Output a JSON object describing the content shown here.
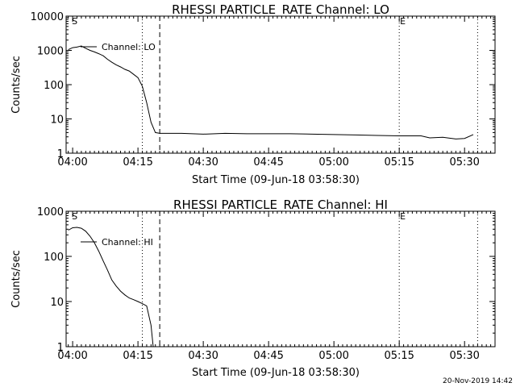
{
  "chart_data": [
    {
      "type": "line",
      "title": "RHESSI PARTICLE_RATE Channel: LO",
      "xlabel": "Start Time (09-Jun-18 03:58:30)",
      "ylabel": "Counts/sec",
      "yscale": "log",
      "xlim": [
        "03:58:30",
        "05:37:00"
      ],
      "ylim": [
        1,
        10000
      ],
      "x_ticks": [
        "04:00",
        "04:15",
        "04:30",
        "04:45",
        "05:00",
        "05:15",
        "05:30"
      ],
      "y_ticks": [
        "1",
        "10",
        "100",
        "1000",
        "10000"
      ],
      "legend": "top-left",
      "series": [
        {
          "name": "Channel: LO",
          "x": [
            "03:59",
            "04:00",
            "04:01",
            "04:02",
            "04:03",
            "04:04",
            "04:05",
            "04:06",
            "04:07",
            "04:08",
            "04:09",
            "04:10",
            "04:11",
            "04:12",
            "04:13",
            "04:14",
            "04:15",
            "04:16",
            "04:17",
            "04:18",
            "04:19",
            "04:20",
            "04:25",
            "04:30",
            "04:35",
            "04:40",
            "04:45",
            "04:50",
            "04:55",
            "05:00",
            "05:05",
            "05:10",
            "05:15",
            "05:20",
            "05:22",
            "05:25",
            "05:28",
            "05:30",
            "05:32"
          ],
          "y": [
            1050,
            1200,
            1250,
            1350,
            1150,
            1000,
            900,
            800,
            700,
            550,
            450,
            380,
            330,
            280,
            250,
            200,
            160,
            90,
            30,
            8,
            4,
            3.8,
            3.8,
            3.6,
            3.8,
            3.7,
            3.7,
            3.7,
            3.6,
            3.5,
            3.4,
            3.3,
            3.2,
            3.2,
            2.8,
            2.9,
            2.6,
            2.7,
            3.5
          ]
        }
      ],
      "vlines": [
        {
          "x": "04:16",
          "style": "dotted"
        },
        {
          "x": "04:20",
          "style": "dashed"
        },
        {
          "x": "05:15",
          "style": "dotted",
          "label": "E"
        },
        {
          "x": "05:33",
          "style": "dotted"
        }
      ],
      "markers": [
        {
          "x": "04:00",
          "label": "S"
        }
      ]
    },
    {
      "type": "line",
      "title": "RHESSI PARTICLE_RATE Channel: HI",
      "xlabel": "Start Time (09-Jun-18 03:58:30)",
      "ylabel": "Counts/sec",
      "yscale": "log",
      "xlim": [
        "03:58:30",
        "05:37:00"
      ],
      "ylim": [
        1,
        1000
      ],
      "x_ticks": [
        "04:00",
        "04:15",
        "04:30",
        "04:45",
        "05:00",
        "05:15",
        "05:30"
      ],
      "y_ticks": [
        "1",
        "10",
        "100",
        "1000"
      ],
      "legend": "top-left",
      "series": [
        {
          "name": "Channel: HI",
          "x": [
            "03:59",
            "04:00",
            "04:01",
            "04:02",
            "04:03",
            "04:04",
            "04:05",
            "04:06",
            "04:07",
            "04:08",
            "04:09",
            "04:10",
            "04:11",
            "04:12",
            "04:13",
            "04:14",
            "04:15",
            "04:16",
            "04:17",
            "04:18",
            "04:18.5"
          ],
          "y": [
            380,
            430,
            440,
            420,
            360,
            280,
            200,
            130,
            80,
            50,
            30,
            22,
            17,
            14,
            12,
            11,
            10,
            9,
            8,
            3,
            1
          ]
        }
      ],
      "vlines": [
        {
          "x": "04:16",
          "style": "dotted"
        },
        {
          "x": "04:20",
          "style": "dashed"
        },
        {
          "x": "05:15",
          "style": "dotted",
          "label": "E"
        },
        {
          "x": "05:33",
          "style": "dotted"
        }
      ],
      "markers": [
        {
          "x": "04:00",
          "label": "S"
        }
      ]
    }
  ],
  "footer": {
    "timestamp": "20-Nov-2019 14:42"
  }
}
